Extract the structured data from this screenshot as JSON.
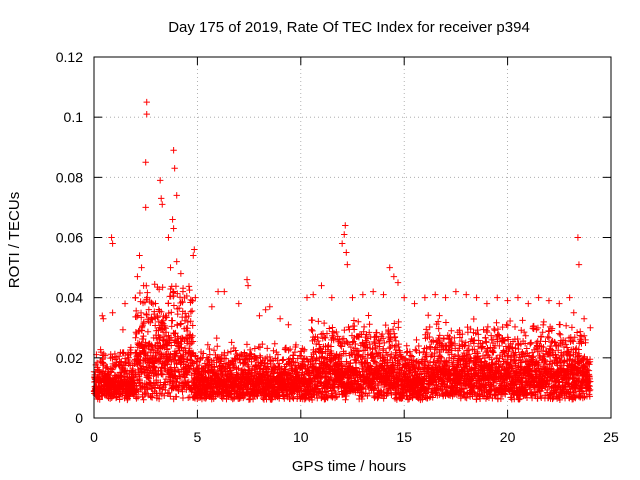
{
  "chart_data": {
    "type": "scatter",
    "title": "Day 175 of 2019, Rate Of TEC Index for receiver p394",
    "xlabel": "GPS time / hours",
    "ylabel": "ROTI / TECUs",
    "xlim": [
      0,
      25
    ],
    "ylim": [
      0,
      0.12
    ],
    "x_ticks": [
      "0",
      "5",
      "10",
      "15",
      "20",
      "25"
    ],
    "y_ticks": [
      "0",
      "0.02",
      "0.04",
      "0.06",
      "0.08",
      "0.1",
      "0.12"
    ],
    "x_tick_values": [
      0,
      5,
      10,
      15,
      20,
      25
    ],
    "y_tick_values": [
      0,
      0.02,
      0.04,
      0.06,
      0.08,
      0.1,
      0.12
    ],
    "grid": true,
    "marker": "+",
    "series_color": "#ff0000",
    "series": [
      {
        "name": "ROTI",
        "note": "Dense scatter from 0 to 24 h; baseline about 0.008-0.02 with frequent spikes to about 0.03-0.045",
        "spikes": [
          [
            0.4,
            0.034
          ],
          [
            0.45,
            0.033
          ],
          [
            0.85,
            0.06
          ],
          [
            0.9,
            0.058
          ],
          [
            0.9,
            0.035
          ],
          [
            1.5,
            0.038
          ],
          [
            2.0,
            0.04
          ],
          [
            2.1,
            0.047
          ],
          [
            2.2,
            0.054
          ],
          [
            2.3,
            0.05
          ],
          [
            2.4,
            0.044
          ],
          [
            2.5,
            0.07
          ],
          [
            2.5,
            0.085
          ],
          [
            2.55,
            0.101
          ],
          [
            2.55,
            0.105
          ],
          [
            3.2,
            0.079
          ],
          [
            3.25,
            0.073
          ],
          [
            3.3,
            0.071
          ],
          [
            3.6,
            0.06
          ],
          [
            3.7,
            0.05
          ],
          [
            3.8,
            0.066
          ],
          [
            3.85,
            0.063
          ],
          [
            3.9,
            0.083
          ],
          [
            3.85,
            0.089
          ],
          [
            4.0,
            0.074
          ],
          [
            4.0,
            0.052
          ],
          [
            4.2,
            0.048
          ],
          [
            4.3,
            0.042
          ],
          [
            4.8,
            0.054
          ],
          [
            4.85,
            0.056
          ],
          [
            4.9,
            0.04
          ],
          [
            5.7,
            0.037
          ],
          [
            6.0,
            0.042
          ],
          [
            6.3,
            0.042
          ],
          [
            7.0,
            0.038
          ],
          [
            7.4,
            0.046
          ],
          [
            7.45,
            0.044
          ],
          [
            8.0,
            0.034
          ],
          [
            8.3,
            0.036
          ],
          [
            8.5,
            0.037
          ],
          [
            9.0,
            0.033
          ],
          [
            9.4,
            0.031
          ],
          [
            10.3,
            0.04
          ],
          [
            10.6,
            0.041
          ],
          [
            11.0,
            0.044
          ],
          [
            11.5,
            0.04
          ],
          [
            12.0,
            0.058
          ],
          [
            12.1,
            0.061
          ],
          [
            12.15,
            0.064
          ],
          [
            12.2,
            0.055
          ],
          [
            12.25,
            0.051
          ],
          [
            12.5,
            0.04
          ],
          [
            13.0,
            0.041
          ],
          [
            13.5,
            0.042
          ],
          [
            14.0,
            0.041
          ],
          [
            14.3,
            0.05
          ],
          [
            14.5,
            0.047
          ],
          [
            14.7,
            0.045
          ],
          [
            15.0,
            0.04
          ],
          [
            15.5,
            0.038
          ],
          [
            16.0,
            0.04
          ],
          [
            16.5,
            0.041
          ],
          [
            17.0,
            0.04
          ],
          [
            17.5,
            0.042
          ],
          [
            18.0,
            0.041
          ],
          [
            18.5,
            0.04
          ],
          [
            19.0,
            0.038
          ],
          [
            19.5,
            0.04
          ],
          [
            20.0,
            0.039
          ],
          [
            20.5,
            0.04
          ],
          [
            21.0,
            0.038
          ],
          [
            21.5,
            0.04
          ],
          [
            22.0,
            0.039
          ],
          [
            22.5,
            0.038
          ],
          [
            23.0,
            0.04
          ],
          [
            23.2,
            0.035
          ],
          [
            23.4,
            0.06
          ],
          [
            23.45,
            0.051
          ],
          [
            23.7,
            0.033
          ],
          [
            24.0,
            0.03
          ]
        ]
      }
    ]
  }
}
